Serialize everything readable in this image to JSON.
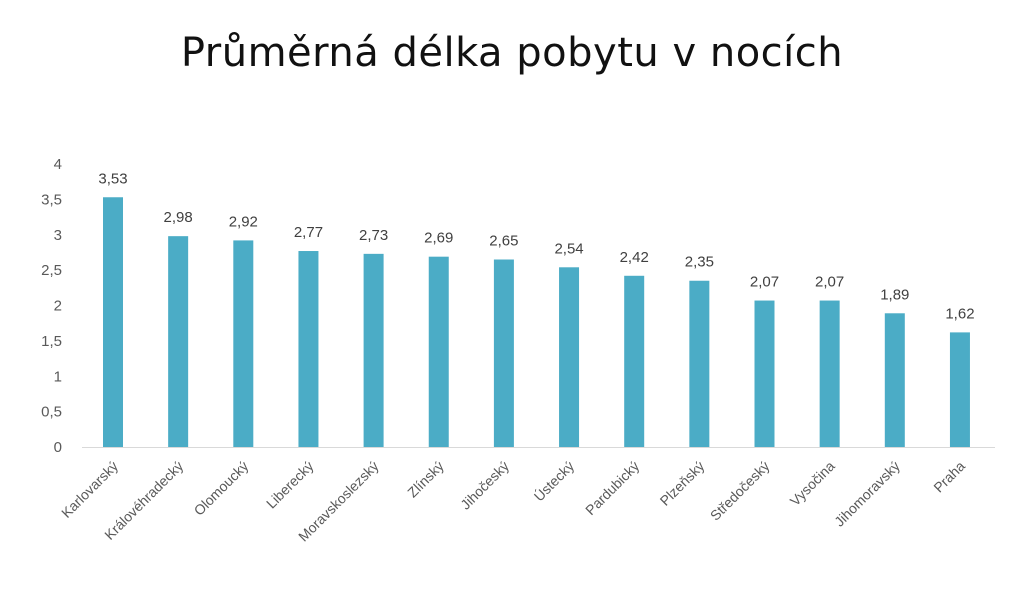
{
  "chart_data": {
    "type": "bar",
    "title": "Průměrná délka pobytu v nocích",
    "xlabel": "",
    "ylabel": "",
    "ylim": [
      0,
      4
    ],
    "yticks": [
      "0",
      "0,5",
      "1",
      "1,5",
      "2",
      "2,5",
      "3",
      "3,5",
      "4"
    ],
    "ytick_values": [
      0,
      0.5,
      1,
      1.5,
      2,
      2.5,
      3,
      3.5,
      4
    ],
    "grid": false,
    "legend": "none",
    "bar_color": "#4BACC6",
    "categories": [
      "Karlovarský",
      "Královéhradecký",
      "Olomoucký",
      "Liberecký",
      "Moravskoslezský",
      "Zlínský",
      "Jihočeský",
      "Ústecký",
      "Pardubický",
      "Plzeňský",
      "Středočeský",
      "Vysočina",
      "Jihomoravský",
      "Praha"
    ],
    "values": [
      3.53,
      2.98,
      2.92,
      2.77,
      2.73,
      2.69,
      2.65,
      2.54,
      2.42,
      2.35,
      2.07,
      2.07,
      1.89,
      1.62
    ],
    "data_labels": [
      "3,53",
      "2,98",
      "2,92",
      "2,77",
      "2,73",
      "2,69",
      "2,65",
      "2,54",
      "2,42",
      "2,35",
      "2,07",
      "2,07",
      "1,89",
      "1,62"
    ]
  }
}
